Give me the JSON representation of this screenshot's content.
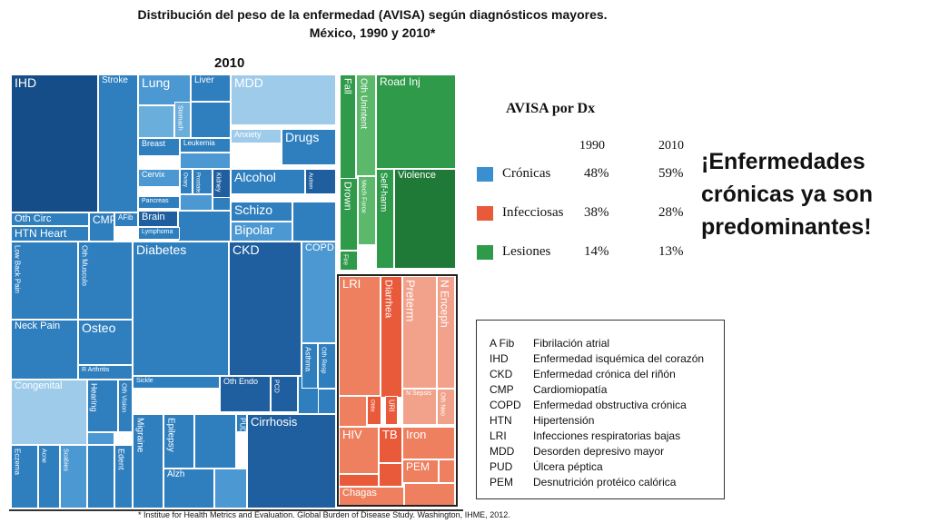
{
  "title": {
    "line1": "Distribución del peso de la enfermedad (AVISA) según diagnósticos mayores.",
    "line2": "México, 1990 y 2010*"
  },
  "treemap_year": "2010",
  "footnote": "* Institue for Health Metrics and Evaluation. Global Burden of Disease Study. Washington, IHME, 2012.",
  "colors": {
    "cronicas": "#3a8fd0",
    "infecciosas": "#e85a3a",
    "lesiones": "#2e9a4a"
  },
  "chart_data": {
    "type": "heatmap",
    "title": "Distribución del peso de la enfermedad (AVISA) según diagnósticos mayores. México, 1990 y 2010*",
    "subtitle": "2010",
    "groups": [
      "Crónicas",
      "Infecciosas",
      "Lesiones"
    ],
    "cells": [
      {
        "label": "IHD",
        "group": "Crónicas"
      },
      {
        "label": "Stroke",
        "group": "Crónicas"
      },
      {
        "label": "Oth Circ",
        "group": "Crónicas"
      },
      {
        "label": "HTN Heart",
        "group": "Crónicas"
      },
      {
        "label": "CMP",
        "group": "Crónicas"
      },
      {
        "label": "AFib",
        "group": "Crónicas"
      },
      {
        "label": "Lung",
        "group": "Crónicas"
      },
      {
        "label": "Liver",
        "group": "Crónicas"
      },
      {
        "label": "Stomach",
        "group": "Crónicas"
      },
      {
        "label": "Breast",
        "group": "Crónicas"
      },
      {
        "label": "Leukemia",
        "group": "Crónicas"
      },
      {
        "label": "Cervix",
        "group": "Crónicas"
      },
      {
        "label": "Ovary",
        "group": "Crónicas"
      },
      {
        "label": "Prostate",
        "group": "Crónicas"
      },
      {
        "label": "Kidney",
        "group": "Crónicas"
      },
      {
        "label": "Pancreas",
        "group": "Crónicas"
      },
      {
        "label": "Brain",
        "group": "Crónicas"
      },
      {
        "label": "Lymphoma",
        "group": "Crónicas"
      },
      {
        "label": "MDD",
        "group": "Crónicas"
      },
      {
        "label": "Anxiety",
        "group": "Crónicas"
      },
      {
        "label": "Drugs",
        "group": "Crónicas"
      },
      {
        "label": "Alcohol",
        "group": "Crónicas"
      },
      {
        "label": "Autism",
        "group": "Crónicas"
      },
      {
        "label": "Schizo",
        "group": "Crónicas"
      },
      {
        "label": "Bipolar",
        "group": "Crónicas"
      },
      {
        "label": "Low Back Pain",
        "group": "Crónicas"
      },
      {
        "label": "Oth Musculo",
        "group": "Crónicas"
      },
      {
        "label": "Neck Pain",
        "group": "Crónicas"
      },
      {
        "label": "Osteo",
        "group": "Crónicas"
      },
      {
        "label": "R Arthritis",
        "group": "Crónicas"
      },
      {
        "label": "Diabetes",
        "group": "Crónicas"
      },
      {
        "label": "CKD",
        "group": "Crónicas"
      },
      {
        "label": "COPD",
        "group": "Crónicas"
      },
      {
        "label": "Asthma",
        "group": "Crónicas"
      },
      {
        "label": "Oth Resp",
        "group": "Crónicas"
      },
      {
        "label": "Sickle",
        "group": "Crónicas"
      },
      {
        "label": "Oth Endo",
        "group": "Crónicas"
      },
      {
        "label": "PUD",
        "group": "Crónicas"
      },
      {
        "label": "PCD",
        "group": "Crónicas"
      },
      {
        "label": "Congenital",
        "group": "Crónicas"
      },
      {
        "label": "Hearing",
        "group": "Crónicas"
      },
      {
        "label": "Oth Vision",
        "group": "Crónicas"
      },
      {
        "label": "Migraine",
        "group": "Crónicas"
      },
      {
        "label": "Epilepsy",
        "group": "Crónicas"
      },
      {
        "label": "Alzh",
        "group": "Crónicas"
      },
      {
        "label": "Cirrhosis",
        "group": "Crónicas"
      },
      {
        "label": "Eczema",
        "group": "Crónicas"
      },
      {
        "label": "Acne",
        "group": "Crónicas"
      },
      {
        "label": "Scabies",
        "group": "Crónicas"
      },
      {
        "label": "Edent",
        "group": "Crónicas"
      },
      {
        "label": "Fall",
        "group": "Lesiones"
      },
      {
        "label": "Oth Unintent",
        "group": "Lesiones"
      },
      {
        "label": "Road Inj",
        "group": "Lesiones"
      },
      {
        "label": "Drown",
        "group": "Lesiones"
      },
      {
        "label": "Mech Force",
        "group": "Lesiones"
      },
      {
        "label": "Self-harm",
        "group": "Lesiones"
      },
      {
        "label": "Violence",
        "group": "Lesiones"
      },
      {
        "label": "Fire",
        "group": "Lesiones"
      },
      {
        "label": "LRI",
        "group": "Infecciosas"
      },
      {
        "label": "Diarrhea",
        "group": "Infecciosas"
      },
      {
        "label": "Preterm",
        "group": "Infecciosas"
      },
      {
        "label": "N Enceph",
        "group": "Infecciosas"
      },
      {
        "label": "N Sepsis",
        "group": "Infecciosas"
      },
      {
        "label": "Oth Neo",
        "group": "Infecciosas"
      },
      {
        "label": "Otitis",
        "group": "Infecciosas"
      },
      {
        "label": "URI",
        "group": "Infecciosas"
      },
      {
        "label": "HIV",
        "group": "Infecciosas"
      },
      {
        "label": "TB",
        "group": "Infecciosas"
      },
      {
        "label": "Iron",
        "group": "Infecciosas"
      },
      {
        "label": "PEM",
        "group": "Infecciosas"
      },
      {
        "label": "Chagas",
        "group": "Infecciosas"
      }
    ]
  },
  "summary_table": {
    "title": "AVISA por Dx",
    "year1": "1990",
    "year2": "2010",
    "rows": [
      {
        "name": "Crónicas",
        "v1990": "48%",
        "v2010": "59%",
        "color": "#3a8fd0"
      },
      {
        "name": "Infecciosas",
        "v1990": "38%",
        "v2010": "28%",
        "color": "#e85a3a"
      },
      {
        "name": "Lesiones",
        "v1990": "14%",
        "v2010": "13%",
        "color": "#2e9a4a"
      }
    ]
  },
  "callout": "¡Enfermedades crónicas ya son predominantes!",
  "abbreviations": [
    {
      "abbr": "A Fib",
      "def": "Fibrilación atrial"
    },
    {
      "abbr": "IHD",
      "def": "Enfermedad isquémica del corazón"
    },
    {
      "abbr": "CKD",
      "def": "Enfermedad crónica del riñón"
    },
    {
      "abbr": "CMP",
      "def": "Cardiomiopatía"
    },
    {
      "abbr": "COPD",
      "def": "Enfermedad obstructiva crónica"
    },
    {
      "abbr": "HTN",
      "def": "Hipertensión"
    },
    {
      "abbr": "LRI",
      "def": "Infecciones respiratorias bajas"
    },
    {
      "abbr": "MDD",
      "def": "Desorden depresivo mayor"
    },
    {
      "abbr": "PUD",
      "def": "Úlcera péptica"
    },
    {
      "abbr": "PEM",
      "def": "Desnutrición protéico calórica"
    }
  ]
}
